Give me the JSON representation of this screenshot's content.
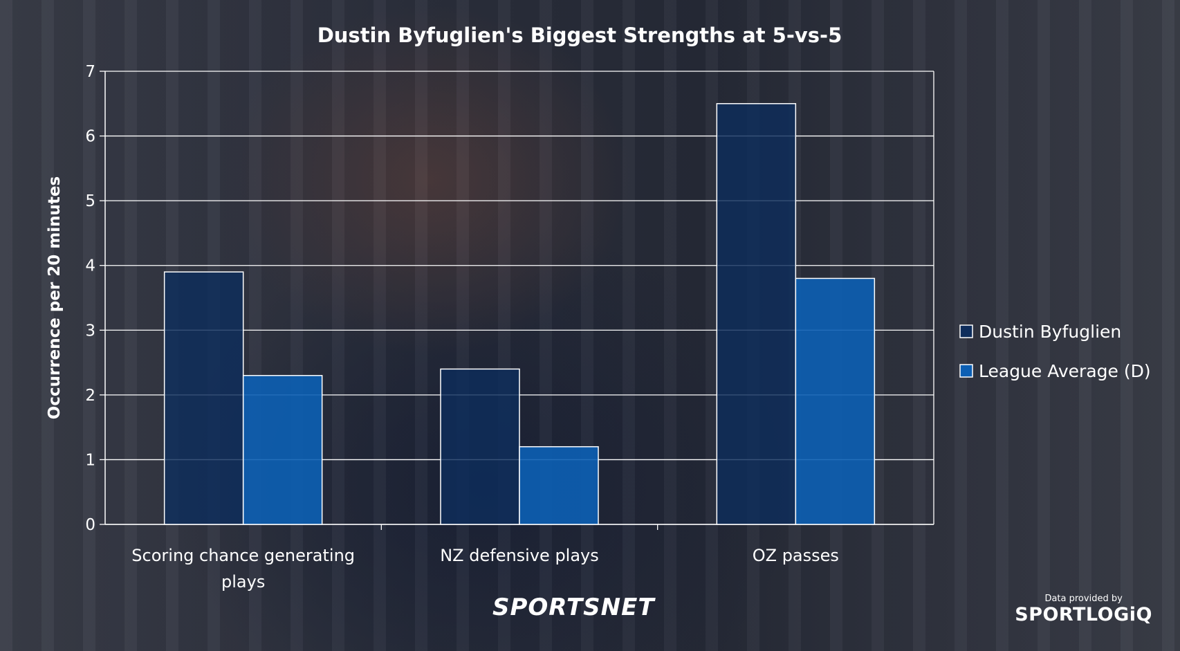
{
  "chart_data": {
    "type": "bar",
    "title": "Dustin Byfuglien's Biggest Strengths at 5-vs-5",
    "xlabel": "",
    "ylabel": "Occurrence per 20 minutes",
    "categories": [
      "Scoring chance generating plays",
      "NZ defensive plays",
      "OZ passes"
    ],
    "category_lines": [
      [
        "Scoring chance generating",
        "plays"
      ],
      [
        "NZ defensive plays"
      ],
      [
        "OZ passes"
      ]
    ],
    "series": [
      {
        "name": "Dustin Byfuglien",
        "values": [
          3.9,
          2.4,
          6.5
        ],
        "color": "#0e2d5c"
      },
      {
        "name": "League Average (D)",
        "values": [
          2.3,
          1.2,
          3.8
        ],
        "color": "#0c5fb4"
      }
    ],
    "ylim": [
      0,
      7
    ],
    "yticks": [
      0,
      1,
      2,
      3,
      4,
      5,
      6,
      7
    ],
    "grid": true,
    "legend_position": "right"
  },
  "branding": {
    "broadcaster_logo": "SPORTSNET",
    "credit_prefix": "Data provided by",
    "credit_logo": "SPORTLOGiQ"
  }
}
